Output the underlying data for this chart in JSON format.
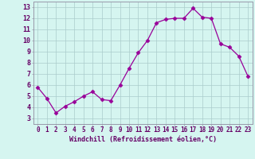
{
  "x": [
    0,
    1,
    2,
    3,
    4,
    5,
    6,
    7,
    8,
    9,
    10,
    11,
    12,
    13,
    14,
    15,
    16,
    17,
    18,
    19,
    20,
    21,
    22,
    23
  ],
  "y": [
    5.8,
    4.8,
    3.5,
    4.1,
    4.5,
    5.0,
    5.4,
    4.7,
    4.6,
    6.0,
    7.5,
    8.9,
    10.0,
    11.6,
    11.9,
    12.0,
    12.0,
    12.9,
    12.1,
    12.0,
    9.7,
    9.4,
    8.6,
    6.8
  ],
  "xlabel": "Windchill (Refroidissement éolien,°C)",
  "xlim": [
    -0.5,
    23.5
  ],
  "ylim": [
    2.5,
    13.5
  ],
  "yticks": [
    3,
    4,
    5,
    6,
    7,
    8,
    9,
    10,
    11,
    12,
    13
  ],
  "xtick_labels": [
    "0",
    "1",
    "2",
    "3",
    "4",
    "5",
    "6",
    "7",
    "8",
    "9",
    "10",
    "11",
    "12",
    "13",
    "14",
    "15",
    "16",
    "17",
    "18",
    "19",
    "20",
    "21",
    "22",
    "23"
  ],
  "line_color": "#990099",
  "marker": "D",
  "marker_size": 2.5,
  "bg_color": "#d5f5f0",
  "grid_color": "#aacccc",
  "spine_color": "#9999aa",
  "label_color": "#660066",
  "tick_label_color": "#660066",
  "xlabel_fontsize": 6.0,
  "tick_fontsize": 5.5
}
